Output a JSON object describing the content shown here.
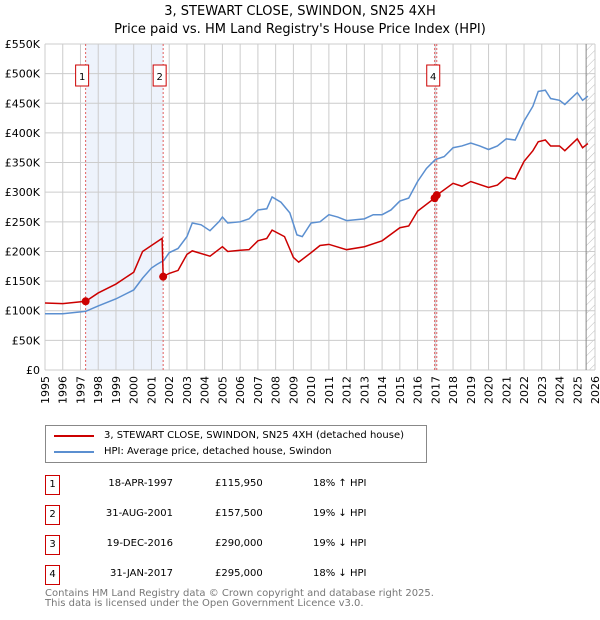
{
  "title": "3, STEWART CLOSE, SWINDON, SN25 4XH",
  "subtitle": "Price paid vs. HM Land Registry's House Price Index (HPI)",
  "colors": {
    "property": "#cc0000",
    "hpi": "#5b8fd0",
    "shade": "#eef3fc",
    "grid": "#cccccc"
  },
  "chart_data": {
    "type": "line",
    "xlim": [
      1995,
      2026
    ],
    "ylim": [
      0,
      550000
    ],
    "yticks": [
      0,
      50000,
      100000,
      150000,
      200000,
      250000,
      300000,
      350000,
      400000,
      450000,
      500000,
      550000
    ],
    "ytick_labels": [
      "£0",
      "£50K",
      "£100K",
      "£150K",
      "£200K",
      "£250K",
      "£300K",
      "£350K",
      "£400K",
      "£450K",
      "£500K",
      "£550K"
    ],
    "xticks": [
      "1995",
      "1996",
      "1997",
      "1998",
      "1999",
      "2000",
      "2001",
      "2002",
      "2003",
      "2004",
      "2005",
      "2006",
      "2007",
      "2008",
      "2009",
      "2010",
      "2011",
      "2012",
      "2013",
      "2014",
      "2015",
      "2016",
      "2017",
      "2018",
      "2019",
      "2020",
      "2021",
      "2022",
      "2023",
      "2024",
      "2025",
      "2026"
    ],
    "grid": true,
    "series": [
      {
        "name": "3, STEWART CLOSE, SWINDON, SN25 4XH (detached house)",
        "color": "#cc0000",
        "x": [
          1995,
          1996,
          1997.3,
          1998,
          1999,
          2000,
          2000.5,
          2001,
          2001.6,
          2001.66,
          2002,
          2002.5,
          2003,
          2003.3,
          2004.3,
          2005,
          2005.3,
          2006,
          2006.5,
          2007,
          2007.5,
          2007.8,
          2008.5,
          2009,
          2009.3,
          2010,
          2010.5,
          2011,
          2012,
          2013,
          2014,
          2015,
          2015.5,
          2016,
          2016.96,
          2017.08,
          2018,
          2018.5,
          2019,
          2020,
          2020.5,
          2021,
          2021.5,
          2022,
          2022.5,
          2022.8,
          2023.2,
          2023.5,
          2024,
          2024.3,
          2025,
          2025.3,
          2025.6
        ],
        "y": [
          113000,
          112000,
          115950,
          130000,
          145000,
          165000,
          200000,
          210000,
          222000,
          157500,
          163000,
          168000,
          195000,
          201000,
          192000,
          208000,
          200000,
          202000,
          203000,
          218000,
          222000,
          236000,
          225000,
          190000,
          182000,
          198000,
          210000,
          212000,
          203000,
          208000,
          218000,
          240000,
          243000,
          268000,
          290000,
          295000,
          315000,
          310000,
          318000,
          308000,
          312000,
          325000,
          322000,
          352000,
          370000,
          385000,
          388000,
          378000,
          378000,
          370000,
          390000,
          375000,
          382000
        ]
      },
      {
        "name": "HPI: Average price, detached house, Swindon",
        "color": "#5b8fd0",
        "x": [
          1995,
          1996,
          1997,
          1997.3,
          1998,
          1999,
          2000,
          2000.5,
          2001,
          2001.3,
          2001.7,
          2002,
          2002.5,
          2003,
          2003.3,
          2003.8,
          2004.3,
          2004.8,
          2005,
          2005.3,
          2006,
          2006.5,
          2007,
          2007.5,
          2007.8,
          2008.3,
          2008.8,
          2009.2,
          2009.5,
          2010,
          2010.5,
          2011,
          2011.5,
          2012,
          2013,
          2013.5,
          2014,
          2014.5,
          2015,
          2015.5,
          2016,
          2016.5,
          2017,
          2017.5,
          2018,
          2018.5,
          2019,
          2019.5,
          2020,
          2020.5,
          2021,
          2021.5,
          2022,
          2022.5,
          2022.8,
          2023.2,
          2023.5,
          2024,
          2024.3,
          2025,
          2025.3,
          2025.6
        ],
        "y": [
          95000,
          95000,
          98000,
          99000,
          108000,
          120000,
          135000,
          155000,
          172000,
          178000,
          185000,
          198000,
          205000,
          225000,
          248000,
          245000,
          235000,
          250000,
          258000,
          248000,
          250000,
          255000,
          270000,
          272000,
          292000,
          283000,
          265000,
          228000,
          225000,
          248000,
          250000,
          262000,
          258000,
          252000,
          255000,
          262000,
          262000,
          270000,
          285000,
          290000,
          318000,
          340000,
          355000,
          360000,
          375000,
          378000,
          383000,
          378000,
          372000,
          378000,
          390000,
          388000,
          420000,
          445000,
          470000,
          472000,
          458000,
          455000,
          448000,
          468000,
          455000,
          462000
        ]
      }
    ],
    "sales": [
      {
        "label": "1",
        "date": "18-APR-1997",
        "x": 1997.29,
        "price": 115950,
        "price_text": "£115,950",
        "hpi": "18% ↑ HPI"
      },
      {
        "label": "2",
        "date": "31-AUG-2001",
        "x": 2001.66,
        "price": 157500,
        "price_text": "£157,500",
        "hpi": "19% ↓ HPI"
      },
      {
        "label": "3",
        "date": "19-DEC-2016",
        "x": 2016.96,
        "price": 290000,
        "price_text": "£290,000",
        "hpi": "19% ↓ HPI"
      },
      {
        "label": "4",
        "date": "31-JAN-2017",
        "x": 2017.08,
        "price": 295000,
        "price_text": "£295,000",
        "hpi": "18% ↓ HPI"
      }
    ],
    "forecast_start": 2025.5
  },
  "legend": {
    "property": "3, STEWART CLOSE, SWINDON, SN25 4XH (detached house)",
    "hpi": "HPI: Average price, detached house, Swindon"
  },
  "footer": {
    "line1": "Contains HM Land Registry data © Crown copyright and database right 2025.",
    "line2": "This data is licensed under the Open Government Licence v3.0."
  }
}
